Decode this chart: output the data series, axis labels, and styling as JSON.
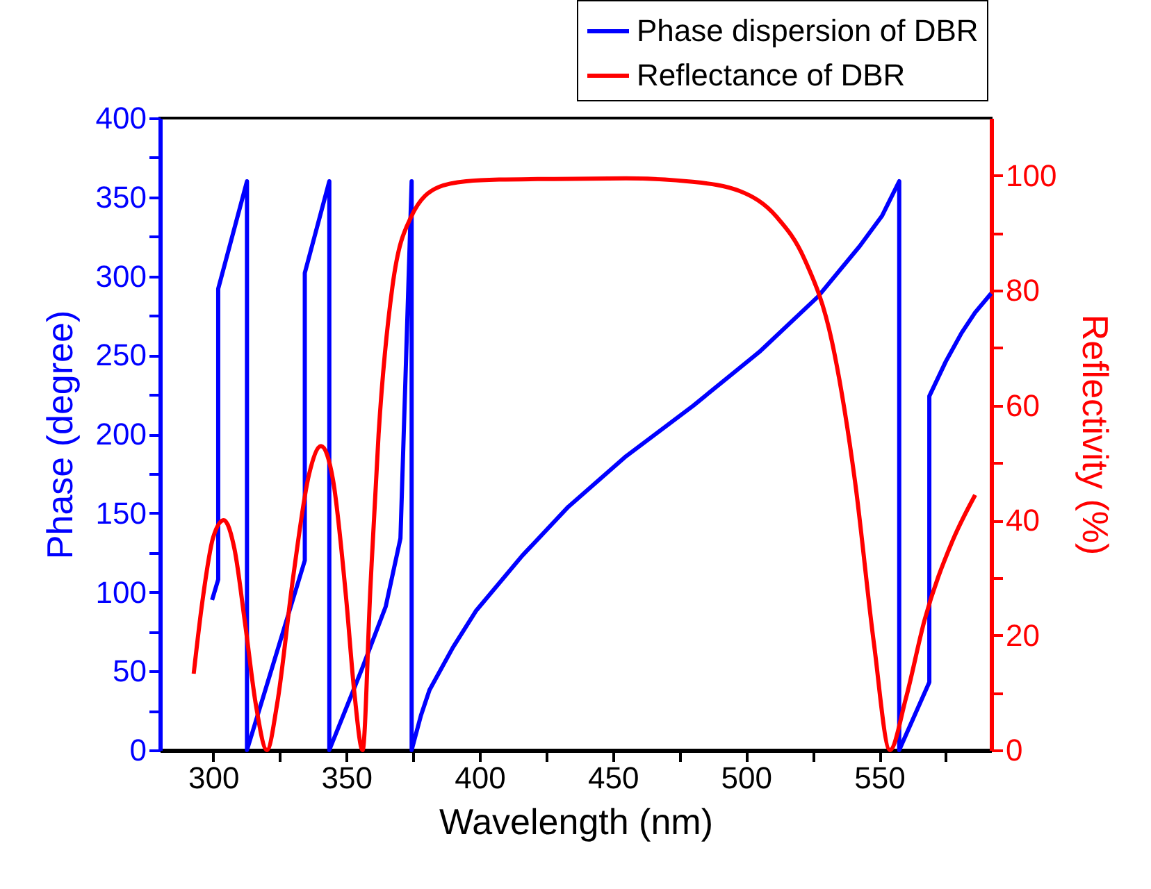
{
  "chart_data": {
    "type": "line",
    "xlabel": "Wavelength (nm)",
    "ylabel": "Phase (degree)",
    "y2label": "Reflectivity (%)",
    "xlim": [
      280,
      592
    ],
    "xticks": [
      300,
      {
        "value": 325,
        "label": null
      },
      350,
      {
        "value": 375,
        "label": null
      },
      400,
      {
        "value": 425,
        "label": null
      },
      450,
      {
        "value": 475,
        "label": null
      },
      500,
      {
        "value": 525,
        "label": null
      },
      550,
      {
        "value": 575,
        "label": null
      }
    ],
    "ylim": [
      0,
      400
    ],
    "yticks": [
      0,
      {
        "value": 25,
        "label": null
      },
      50,
      {
        "value": 75,
        "label": null
      },
      100,
      {
        "value": 125,
        "label": null
      },
      150,
      {
        "value": 175,
        "label": null
      },
      200,
      {
        "value": 225,
        "label": null
      },
      250,
      {
        "value": 275,
        "label": null
      },
      300,
      {
        "value": 325,
        "label": null
      },
      350,
      {
        "value": 375,
        "label": null
      },
      400
    ],
    "y2lim": [
      0,
      110
    ],
    "y2ticks": [
      0,
      {
        "value": 10,
        "label": null
      },
      20,
      {
        "value": 30,
        "label": null
      },
      40,
      {
        "value": 50,
        "label": null
      },
      60,
      {
        "value": 70,
        "label": null
      },
      80,
      {
        "value": 90,
        "label": null
      },
      100
    ],
    "legend": "top right",
    "grid": false,
    "series": [
      {
        "name": "Phase dispersion of DBR",
        "color": "#0000ff",
        "x": [
          299.6,
          301.9,
          301.9,
          312.7,
          312.7,
          334.4,
          334.4,
          343.6,
          343.6,
          356,
          364.8,
          370.3,
          374.5,
          374.5,
          378,
          381.2,
          390,
          398.6,
          416,
          433.3,
          455,
          480.2,
          505,
          527,
          542.7,
          551,
          557.5,
          557.5,
          568.8,
          568.8,
          575,
          580.9,
          586,
          592
        ],
        "values": [
          95,
          108,
          292,
          360,
          0,
          120,
          302,
          360,
          0,
          52,
          91,
          134,
          360,
          0,
          22,
          38,
          65,
          88,
          123,
          154,
          186,
          218,
          252,
          287,
          319,
          338,
          360,
          0,
          43,
          224,
          246,
          264,
          277,
          289
        ]
      },
      {
        "name": "Reflectance of DBR",
        "color": "#ff0000",
        "axis": "y2",
        "x": [
          292.7,
          296,
          300,
          304,
          308,
          312,
          316,
          320.2,
          324,
          330,
          336,
          340.5,
          345,
          350,
          353,
          356.1,
          359,
          362.1,
          367.3,
          374.3,
          384.7,
          395,
          407.3,
          428,
          455,
          480,
          497.6,
          511.5,
          521.9,
          532.3,
          540.9,
          548,
          554,
          560,
          567,
          577.4,
          586
        ],
        "values": [
          13.3,
          26,
          37,
          40,
          35,
          22,
          8,
          0,
          8,
          30,
          48,
          52.9,
          47,
          26,
          10,
          0,
          28,
          55,
          80.7,
          92.8,
          98,
          99,
          99.3,
          99.4,
          99.5,
          98.9,
          97.3,
          92.8,
          85.5,
          71,
          46.8,
          18.6,
          0,
          9,
          22.6,
          36.3,
          44.4
        ]
      }
    ]
  }
}
